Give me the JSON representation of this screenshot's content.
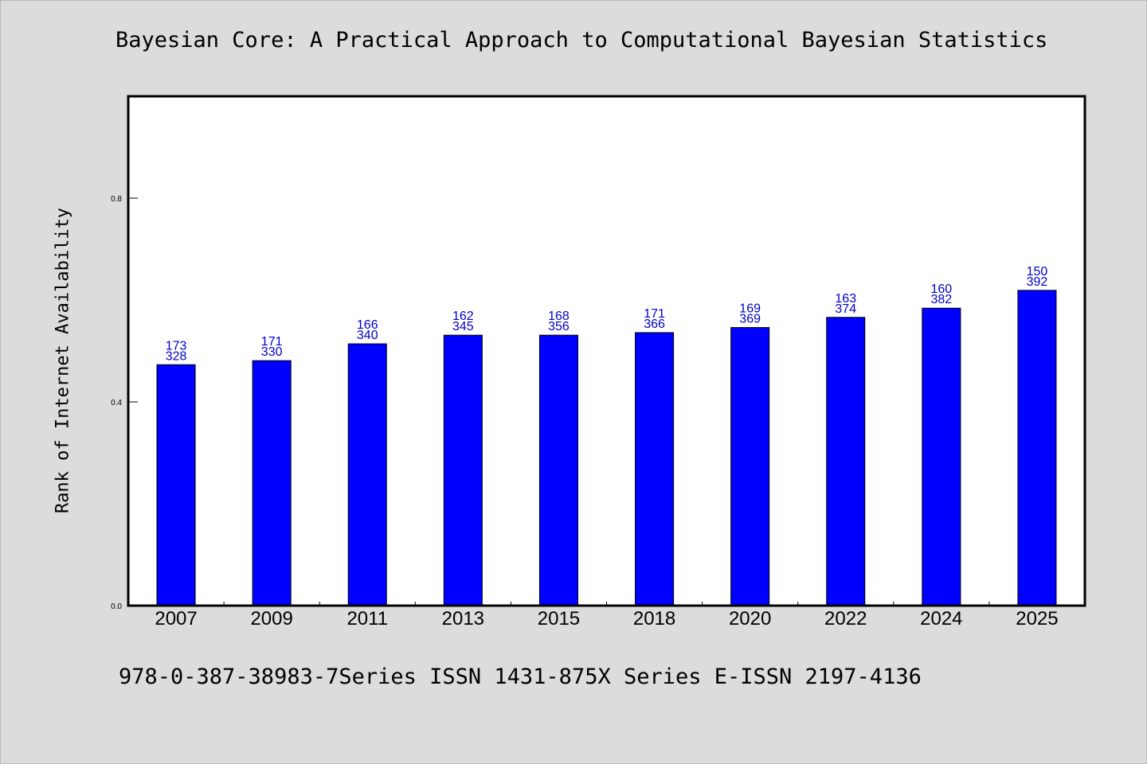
{
  "title": "Bayesian Core: A Practical Approach to Computational Bayesian Statistics",
  "footer": "978-0-387-38983-7Series ISSN 1431-875X Series E-ISSN 2197-4136",
  "colors": {
    "bar": "#0000ff",
    "label": "#0000cc",
    "background": "#dcdcdc",
    "plot_background": "#ffffff"
  },
  "chart_data": {
    "type": "bar",
    "title": "Bayesian Core: A Practical Approach to Computational Bayesian Statistics",
    "xlabel": "",
    "ylabel": "Rank of Internet Availability",
    "ylim": [
      0,
      1.0
    ],
    "yticks": [
      {
        "value": 0.0,
        "label": "0.0"
      },
      {
        "value": 0.4,
        "label": "0.4"
      },
      {
        "value": 0.8,
        "label": "0.8"
      }
    ],
    "categories": [
      "2007",
      "2009",
      "2011",
      "2013",
      "2015",
      "2018",
      "2020",
      "2022",
      "2024",
      "2025"
    ],
    "values": [
      0.473,
      0.481,
      0.514,
      0.531,
      0.531,
      0.536,
      0.546,
      0.566,
      0.584,
      0.619
    ],
    "label_top": [
      "173",
      "171",
      "166",
      "162",
      "168",
      "171",
      "169",
      "163",
      "160",
      "150"
    ],
    "label_bottom": [
      "328",
      "330",
      "340",
      "345",
      "356",
      "366",
      "369",
      "374",
      "382",
      "392"
    ],
    "grid": false,
    "legend": "none"
  }
}
